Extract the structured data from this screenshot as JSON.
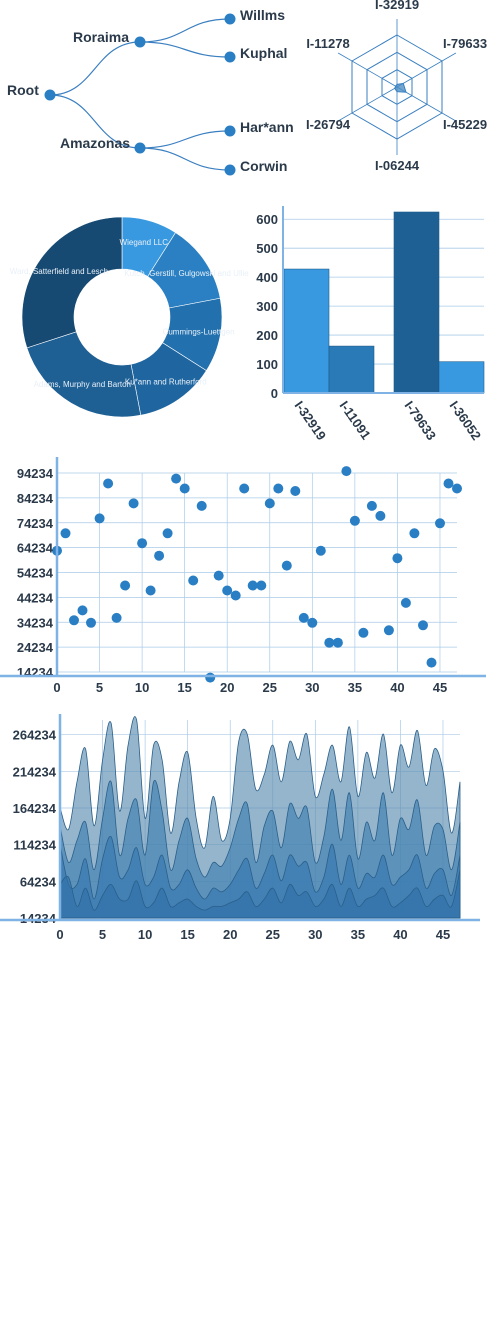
{
  "colors": {
    "accent": "#2a7fc4",
    "link": "#3a7fc0",
    "grid": "#aacbe8",
    "axis": "#7fb3e6",
    "text": "#2b3a4a"
  },
  "chart_data": [
    {
      "type": "tree",
      "root": {
        "name": "Root",
        "children": [
          {
            "name": "Roraima",
            "children": [
              {
                "name": "Willms"
              },
              {
                "name": "Kuphal"
              }
            ]
          },
          {
            "name": "Amazonas",
            "children": [
              {
                "name": "Har*ann"
              },
              {
                "name": "Corwin"
              }
            ]
          }
        ]
      }
    },
    {
      "type": "radar",
      "axes": [
        "I-32919",
        "I-79633",
        "I-45229",
        "I-06244",
        "I-26794",
        "I-11278"
      ],
      "values": [
        0.05,
        0.14,
        0.2,
        0.09,
        0.05,
        0.03
      ],
      "rings": 3
    },
    {
      "type": "pie",
      "donut": true,
      "labels": [
        "Wiegand LLC",
        "Kutch, Gerstill, Gulgowski and Ullie",
        "Cummings-Luettgen",
        "Ku*ann and Rutherford",
        "Adams, Murphy and Barton",
        "Ward, Satterfield and Lesch"
      ],
      "values": [
        9,
        13,
        12,
        13,
        23,
        30
      ],
      "colors": [
        "#3899e0",
        "#2a80c2",
        "#2270ae",
        "#1f66a0",
        "#1e5f94",
        "#174a73"
      ]
    },
    {
      "type": "bar",
      "categories": [
        "I-32919",
        "I-11091",
        "I-79633",
        "I-36052"
      ],
      "values": [
        428,
        162,
        625,
        108
      ],
      "colors": [
        "#3899e0",
        "#2a7ab8",
        "#1e5f94",
        "#3899e0"
      ],
      "yticks": [
        0,
        100,
        200,
        300,
        400,
        500,
        600
      ],
      "ylim": [
        0,
        625
      ]
    },
    {
      "type": "scatter",
      "x": [
        0,
        1,
        2,
        3,
        4,
        5,
        6,
        7,
        8,
        9,
        10,
        11,
        12,
        13,
        14,
        15,
        16,
        17,
        18,
        19,
        20,
        21,
        22,
        23,
        24,
        25,
        26,
        27,
        28,
        29,
        30,
        31,
        32,
        33,
        34,
        35,
        36,
        37,
        38,
        39,
        40,
        41,
        42,
        43,
        44,
        45,
        46,
        47
      ],
      "y": [
        63000,
        70000,
        35000,
        39000,
        34000,
        76000,
        90000,
        36000,
        49000,
        82000,
        66000,
        47000,
        61000,
        70000,
        92000,
        88000,
        51000,
        81000,
        12000,
        53000,
        47000,
        45000,
        88000,
        49000,
        49000,
        82000,
        88000,
        57000,
        87000,
        36000,
        34000,
        63000,
        26000,
        26000,
        95000,
        75000,
        30000,
        81000,
        77000,
        31000,
        60000,
        42000,
        70000,
        33000,
        18000,
        74000,
        90000,
        88000
      ],
      "xticks": [
        0,
        5,
        10,
        15,
        20,
        25,
        30,
        35,
        40,
        45
      ],
      "yticks": [
        14234,
        24234,
        34234,
        44234,
        54234,
        64234,
        74234,
        84234,
        94234
      ],
      "xlim": [
        0,
        47
      ],
      "ylim": [
        14234,
        94234
      ]
    },
    {
      "type": "area",
      "stacked": false,
      "xticks": [
        0,
        5,
        10,
        15,
        20,
        25,
        30,
        35,
        40,
        45
      ],
      "yticks": [
        14234,
        64234,
        114234,
        164234,
        214234,
        264234
      ],
      "xlim": [
        0,
        47
      ],
      "ylim": [
        14234,
        284234
      ],
      "series": [
        {
          "color": "#5c8db0",
          "values": [
            165000,
            135000,
            200000,
            245000,
            140000,
            230000,
            280000,
            160000,
            250000,
            285000,
            150000,
            250000,
            230000,
            130000,
            200000,
            240000,
            150000,
            110000,
            180000,
            120000,
            150000,
            255000,
            265000,
            190000,
            210000,
            250000,
            200000,
            255000,
            230000,
            265000,
            180000,
            210000,
            250000,
            200000,
            275000,
            180000,
            240000,
            205000,
            265000,
            185000,
            250000,
            220000,
            270000,
            195000,
            245000,
            215000,
            130000,
            200000
          ]
        },
        {
          "color": "#3f7fb0",
          "values": [
            140000,
            90000,
            120000,
            145000,
            80000,
            150000,
            200000,
            100000,
            150000,
            175000,
            100000,
            200000,
            160000,
            80000,
            120000,
            150000,
            95000,
            70000,
            90000,
            85000,
            110000,
            150000,
            170000,
            90000,
            140000,
            160000,
            110000,
            170000,
            150000,
            165000,
            90000,
            125000,
            190000,
            120000,
            185000,
            95000,
            145000,
            120000,
            185000,
            100000,
            150000,
            135000,
            175000,
            100000,
            140000,
            135000,
            80000,
            145000
          ]
        },
        {
          "color": "#3578b0",
          "values": [
            115000,
            60000,
            60000,
            95000,
            40000,
            95000,
            125000,
            70000,
            80000,
            110000,
            60000,
            70000,
            100000,
            55000,
            60000,
            80000,
            55000,
            40000,
            55000,
            50000,
            60000,
            80000,
            95000,
            55000,
            75000,
            100000,
            65000,
            100000,
            85000,
            90000,
            50000,
            70000,
            115000,
            60000,
            100000,
            55000,
            75000,
            70000,
            100000,
            60000,
            70000,
            80000,
            100000,
            55000,
            75000,
            80000,
            45000,
            100000
          ]
        },
        {
          "color": "#2f70a8",
          "values": [
            60000,
            70000,
            30000,
            55000,
            25000,
            45000,
            60000,
            40000,
            40000,
            65000,
            30000,
            35000,
            55000,
            30000,
            35000,
            40000,
            30000,
            25000,
            30000,
            30000,
            35000,
            40000,
            50000,
            30000,
            40000,
            55000,
            35000,
            60000,
            45000,
            50000,
            30000,
            40000,
            60000,
            30000,
            55000,
            30000,
            40000,
            45000,
            55000,
            30000,
            35000,
            45000,
            55000,
            30000,
            40000,
            45000,
            30000,
            80000
          ]
        }
      ]
    }
  ]
}
